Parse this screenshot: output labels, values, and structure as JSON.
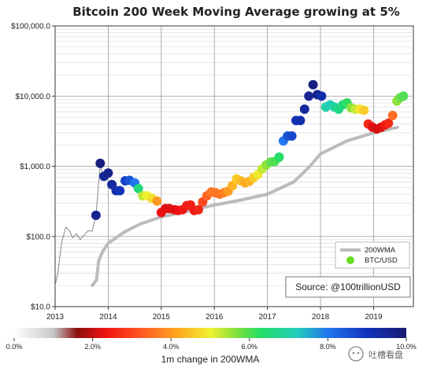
{
  "chart_data": {
    "type": "scatter",
    "title": "Bitcoin 200 Week Moving Average growing at 5%",
    "y_scale": "log",
    "ylim": [
      10,
      100000
    ],
    "xlim": [
      2013.0,
      2019.75
    ],
    "y_ticks": [
      {
        "value": 10,
        "label": "$10.0"
      },
      {
        "value": 100,
        "label": "$100.0"
      },
      {
        "value": 1000,
        "label": "$1,000.0"
      },
      {
        "value": 10000,
        "label": "$10,000.0"
      },
      {
        "value": 100000,
        "label": "$100,000.0"
      }
    ],
    "x_ticks": [
      {
        "value": 2013,
        "label": "2013"
      },
      {
        "value": 2014,
        "label": "2014"
      },
      {
        "value": 2015,
        "label": "2015"
      },
      {
        "value": 2016,
        "label": "2016"
      },
      {
        "value": 2017,
        "label": "2017"
      },
      {
        "value": 2018,
        "label": "2018"
      },
      {
        "value": 2019,
        "label": "2019"
      }
    ],
    "grid": true,
    "legend": {
      "position": "bottom-right",
      "entries": [
        {
          "label": "200WMA",
          "color": "#bbbbbb"
        },
        {
          "label": "BTC/USD",
          "color": "#66dd22"
        }
      ]
    },
    "annotation": "Source: @100trillionUSD",
    "price_line_color": "#888888",
    "wma_color": "#bbbbbb",
    "price_line": [
      [
        2013.0,
        20
      ],
      [
        2013.05,
        30
      ],
      [
        2013.12,
        80
      ],
      [
        2013.2,
        135
      ],
      [
        2013.28,
        118
      ],
      [
        2013.33,
        95
      ],
      [
        2013.4,
        110
      ],
      [
        2013.47,
        90
      ],
      [
        2013.55,
        105
      ],
      [
        2013.62,
        120
      ],
      [
        2013.7,
        120
      ],
      [
        2013.77,
        200
      ],
      [
        2013.85,
        1100
      ],
      [
        2013.9,
        720
      ]
    ],
    "series": [
      {
        "name": "200WMA",
        "values": [
          [
            2013.7,
            20
          ],
          [
            2013.78,
            24
          ],
          [
            2013.82,
            45
          ],
          [
            2013.9,
            62
          ],
          [
            2014.0,
            80
          ],
          [
            2014.3,
            115
          ],
          [
            2014.6,
            150
          ],
          [
            2015.0,
            190
          ],
          [
            2015.5,
            230
          ],
          [
            2016.0,
            280
          ],
          [
            2016.5,
            330
          ],
          [
            2017.0,
            400
          ],
          [
            2017.5,
            600
          ],
          [
            2017.8,
            1000
          ],
          [
            2018.0,
            1500
          ],
          [
            2018.5,
            2300
          ],
          [
            2019.0,
            3000
          ],
          [
            2019.45,
            3600
          ]
        ]
      },
      {
        "name": "BTC/USD",
        "colorbar_key": "1m change in 200WMA (%)",
        "values": [
          [
            2013.77,
            200,
            9.6
          ],
          [
            2013.85,
            1100,
            9.8
          ],
          [
            2013.92,
            720,
            9.5
          ],
          [
            2014.0,
            800,
            9.6
          ],
          [
            2014.07,
            550,
            9.4
          ],
          [
            2014.15,
            450,
            9.2
          ],
          [
            2014.22,
            450,
            9.0
          ],
          [
            2014.32,
            620,
            8.8
          ],
          [
            2014.4,
            630,
            8.5
          ],
          [
            2014.5,
            580,
            8.0
          ],
          [
            2014.57,
            480,
            6.5
          ],
          [
            2014.65,
            380,
            5.3
          ],
          [
            2014.73,
            380,
            5.0
          ],
          [
            2014.82,
            350,
            4.8
          ],
          [
            2014.92,
            320,
            4.0
          ],
          [
            2015.0,
            220,
            2.3
          ],
          [
            2015.08,
            250,
            2.2
          ],
          [
            2015.15,
            250,
            2.2
          ],
          [
            2015.25,
            240,
            2.2
          ],
          [
            2015.32,
            235,
            2.3
          ],
          [
            2015.4,
            240,
            2.4
          ],
          [
            2015.48,
            275,
            2.5
          ],
          [
            2015.55,
            280,
            2.5
          ],
          [
            2015.62,
            235,
            2.4
          ],
          [
            2015.7,
            240,
            2.6
          ],
          [
            2015.78,
            310,
            3.0
          ],
          [
            2015.86,
            380,
            3.4
          ],
          [
            2015.94,
            430,
            3.6
          ],
          [
            2016.02,
            420,
            3.6
          ],
          [
            2016.1,
            400,
            3.6
          ],
          [
            2016.18,
            420,
            3.7
          ],
          [
            2016.26,
            440,
            4.0
          ],
          [
            2016.34,
            530,
            4.3
          ],
          [
            2016.42,
            660,
            4.6
          ],
          [
            2016.5,
            620,
            4.4
          ],
          [
            2016.58,
            580,
            4.2
          ],
          [
            2016.66,
            610,
            4.3
          ],
          [
            2016.74,
            690,
            4.6
          ],
          [
            2016.82,
            760,
            4.9
          ],
          [
            2016.9,
            920,
            5.3
          ],
          [
            2016.98,
            1050,
            5.6
          ],
          [
            2017.06,
            1150,
            5.9
          ],
          [
            2017.14,
            1180,
            6.0
          ],
          [
            2017.22,
            1350,
            6.3
          ],
          [
            2017.3,
            2300,
            8.0
          ],
          [
            2017.38,
            2700,
            8.5
          ],
          [
            2017.46,
            2700,
            8.7
          ],
          [
            2017.54,
            4500,
            9.1
          ],
          [
            2017.62,
            4500,
            9.2
          ],
          [
            2017.7,
            6500,
            9.4
          ],
          [
            2017.78,
            10000,
            9.6
          ],
          [
            2017.86,
            14500,
            9.8
          ],
          [
            2017.94,
            10500,
            9.6
          ],
          [
            2018.02,
            10000,
            9.2
          ],
          [
            2018.1,
            7000,
            7.0
          ],
          [
            2018.18,
            7500,
            7.2
          ],
          [
            2018.26,
            7000,
            6.9
          ],
          [
            2018.34,
            6500,
            6.6
          ],
          [
            2018.42,
            7500,
            6.5
          ],
          [
            2018.5,
            8000,
            6.2
          ],
          [
            2018.58,
            6800,
            5.6
          ],
          [
            2018.66,
            6500,
            5.3
          ],
          [
            2018.74,
            6500,
            4.9
          ],
          [
            2018.82,
            6300,
            4.6
          ],
          [
            2018.9,
            4000,
            2.6
          ],
          [
            2018.98,
            3600,
            2.2
          ],
          [
            2019.06,
            3400,
            2.1
          ],
          [
            2019.14,
            3600,
            2.2
          ],
          [
            2019.22,
            3900,
            2.4
          ],
          [
            2019.28,
            4100,
            2.6
          ],
          [
            2019.36,
            5300,
            3.5
          ],
          [
            2019.44,
            8500,
            5.6
          ],
          [
            2019.5,
            9500,
            5.8
          ],
          [
            2019.56,
            10000,
            6.0
          ]
        ]
      }
    ],
    "colorbar": {
      "title": "1m change in 200WMA",
      "range": [
        0,
        10
      ],
      "ticks": [
        {
          "value": 0,
          "label": "0.0%"
        },
        {
          "value": 2,
          "label": "2.0%"
        },
        {
          "value": 4,
          "label": "4.0%"
        },
        {
          "value": 6,
          "label": "6.0%"
        },
        {
          "value": 8,
          "label": "8.0%"
        },
        {
          "value": 10,
          "label": "10.0%"
        }
      ],
      "stops": [
        [
          0,
          "#ffffff"
        ],
        [
          1,
          "#c8c8c8"
        ],
        [
          1.6,
          "#8b1010"
        ],
        [
          2.3,
          "#ee1111"
        ],
        [
          3.2,
          "#ff5522"
        ],
        [
          4.2,
          "#ffaa22"
        ],
        [
          5.0,
          "#f0f030"
        ],
        [
          5.7,
          "#7de040"
        ],
        [
          6.3,
          "#22dd66"
        ],
        [
          7.2,
          "#22ccbb"
        ],
        [
          8.0,
          "#2277ee"
        ],
        [
          9.0,
          "#1133bb"
        ],
        [
          10,
          "#1a1a70"
        ]
      ]
    }
  },
  "watermark": {
    "text": "吐槽看盘"
  }
}
